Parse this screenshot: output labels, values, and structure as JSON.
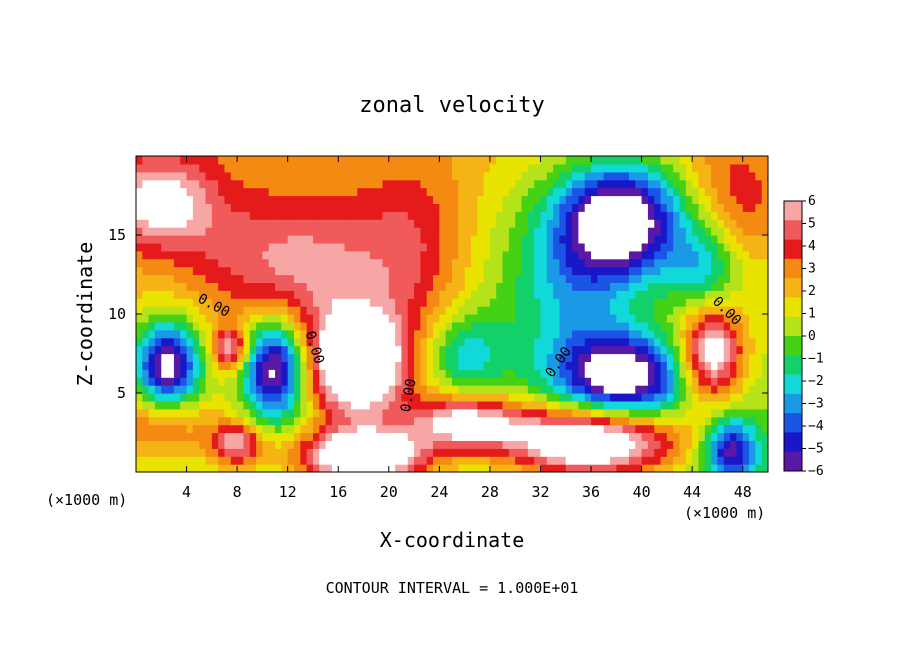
{
  "chart_data": {
    "type": "heatmap",
    "title": "zonal velocity",
    "xlabel": "X-coordinate",
    "ylabel": "Z-coordinate",
    "x_unit_left": "(×1000 m)",
    "x_unit_right": "(×1000 m)",
    "footer": "CONTOUR INTERVAL = 1.000E+01",
    "xlim": [
      0,
      50
    ],
    "ylim": [
      0,
      20
    ],
    "x_ticks": [
      4,
      8,
      12,
      16,
      20,
      24,
      28,
      32,
      36,
      40,
      44,
      48
    ],
    "y_ticks": [
      5,
      10,
      15
    ],
    "colorbar": {
      "range": [
        -6,
        6
      ],
      "ticks": [
        "6",
        "5",
        "4",
        "3",
        "2",
        "1",
        "0",
        "−1",
        "−2",
        "−3",
        "−4",
        "−5",
        "−6"
      ],
      "colors": [
        "#f7a6a6",
        "#f05a5a",
        "#e51b1b",
        "#f58a12",
        "#f5b316",
        "#e8e400",
        "#b6e21a",
        "#44d116",
        "#12d06a",
        "#12d9d9",
        "#1a9ae6",
        "#1a55e6",
        "#1818c8",
        "#5a18a6"
      ],
      "out_of_range_color": "#ffffff"
    },
    "contour_labels": [
      {
        "text": "0.00",
        "x": 6.0,
        "y": 10.3,
        "rot": 28
      },
      {
        "text": "0.00",
        "x": 13.8,
        "y": 7.8,
        "rot": 72
      },
      {
        "text": "0.00",
        "x": 21.9,
        "y": 4.8,
        "rot": -80
      },
      {
        "text": "0.00",
        "x": 33.7,
        "y": 6.8,
        "rot": -55
      },
      {
        "text": "0.00",
        "x": 46.5,
        "y": 10.0,
        "rot": 45
      }
    ],
    "features": [
      {
        "x": 7.5,
        "y": 14,
        "v": 1.0,
        "sx": 3.5,
        "sy": 2.5
      },
      {
        "x": 14,
        "y": 13,
        "v": 3.5,
        "sx": 5,
        "sy": 3
      },
      {
        "x": 2,
        "y": 17,
        "v": 4.5,
        "sx": 3,
        "sy": 2
      },
      {
        "x": 2,
        "y": 3,
        "v": 3,
        "sx": 3,
        "sy": 1.5
      },
      {
        "x": 2.5,
        "y": 6.8,
        "v": -8,
        "sx": 1.8,
        "sy": 2.0
      },
      {
        "x": 11,
        "y": 6.6,
        "v": -8,
        "sx": 1.8,
        "sy": 2.2
      },
      {
        "x": 7.5,
        "y": 7.8,
        "v": 5,
        "sx": 1,
        "sy": 1
      },
      {
        "x": 17.5,
        "y": 6.8,
        "v": 9,
        "sx": 2.8,
        "sy": 2.4
      },
      {
        "x": 22,
        "y": 14,
        "v": 2,
        "sx": 3,
        "sy": 4
      },
      {
        "x": 26,
        "y": 3.2,
        "v": 6,
        "sx": 3.2,
        "sy": 1.2
      },
      {
        "x": 26,
        "y": 7.5,
        "v": -3,
        "sx": 2,
        "sy": 1.8
      },
      {
        "x": 30,
        "y": 12,
        "v": -1.2,
        "sx": 3,
        "sy": 6
      },
      {
        "x": 35,
        "y": 12,
        "v": -3,
        "sx": 3,
        "sy": 4
      },
      {
        "x": 38.5,
        "y": 16,
        "v": -9,
        "sx": 3.5,
        "sy": 2.6
      },
      {
        "x": 38.5,
        "y": 6,
        "v": -8,
        "sx": 3.5,
        "sy": 2.0
      },
      {
        "x": 36,
        "y": 2.0,
        "v": 9,
        "sx": 5,
        "sy": 1.6
      },
      {
        "x": 18,
        "y": 1.0,
        "v": 9,
        "sx": 3.5,
        "sy": 1.2
      },
      {
        "x": 45.5,
        "y": 7.5,
        "v": 7,
        "sx": 1.8,
        "sy": 2.2
      },
      {
        "x": 47.5,
        "y": 17,
        "v": 2.5,
        "sx": 3,
        "sy": 3
      },
      {
        "x": 45,
        "y": 13,
        "v": -3.5,
        "sx": 2,
        "sy": 2.2
      },
      {
        "x": 47,
        "y": 1.5,
        "v": -6,
        "sx": 1.5,
        "sy": 1.5
      },
      {
        "x": 8,
        "y": 1.8,
        "v": 5,
        "sx": 1.5,
        "sy": 1
      }
    ],
    "grid": false
  }
}
